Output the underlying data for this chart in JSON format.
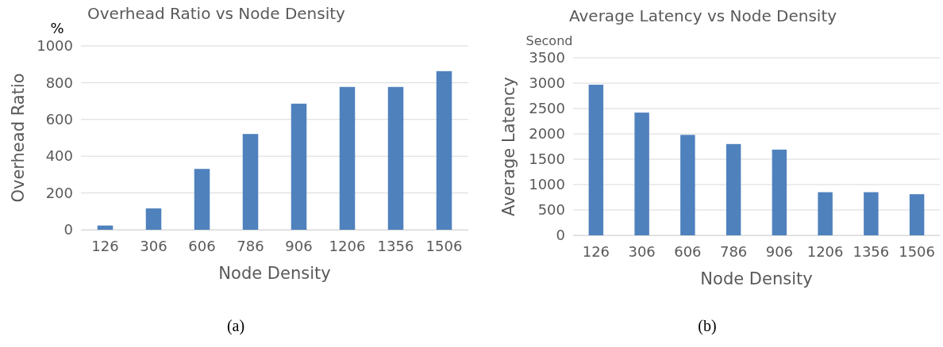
{
  "chart_data": [
    {
      "type": "bar",
      "title": "Overhead Ratio vs Node Density",
      "xlabel": "Node Density",
      "ylabel": "Overhead Ratio",
      "categories": [
        "126",
        "306",
        "606",
        "786",
        "906",
        "1206",
        "1356",
        "1506"
      ],
      "values": [
        23,
        116,
        331,
        521,
        686,
        777,
        777,
        863
      ],
      "color": "#4f81bd",
      "ylim": [
        0,
        1000
      ],
      "yticks": [
        0,
        200,
        400,
        600,
        800,
        1000
      ],
      "grid": "y",
      "annotations": [
        "%",
        "(a)"
      ]
    },
    {
      "type": "bar",
      "title": "Average Latency vs Node Density",
      "xlabel": "Node Density",
      "ylabel": "Average Latency",
      "categories": [
        "126",
        "306",
        "606",
        "786",
        "906",
        "1206",
        "1356",
        "1506"
      ],
      "values": [
        2970,
        2420,
        1980,
        1800,
        1690,
        850,
        850,
        810
      ],
      "color": "#4f81bd",
      "ylim": [
        0,
        3500
      ],
      "yticks": [
        0,
        500,
        1000,
        1500,
        2000,
        2500,
        3000,
        3500
      ],
      "grid": "y",
      "annotations": [
        "Second",
        "(b)"
      ]
    }
  ]
}
